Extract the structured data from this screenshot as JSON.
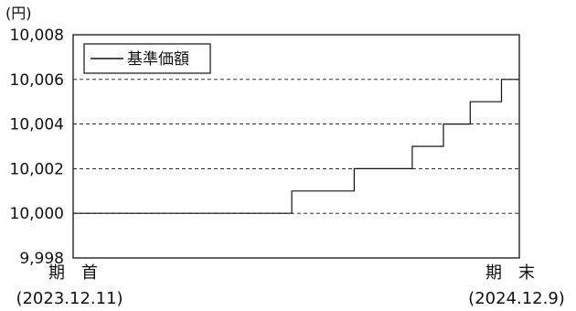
{
  "chart_data": {
    "type": "line",
    "unit": "(円)",
    "yticks": [
      "9,998",
      "10,000",
      "10,002",
      "10,004",
      "10,006",
      "10,008"
    ],
    "ylim": [
      9998,
      10008
    ],
    "grid": "dashed horizontal",
    "legend": {
      "position": "top-left",
      "label": "基準価額"
    },
    "x_start": {
      "label": "期　首",
      "date": "(2023.12.11)"
    },
    "x_end": {
      "label": "期　末",
      "date": "(2024.12.9)"
    },
    "series": [
      {
        "name": "基準価額",
        "points": [
          [
            0.0,
            10000
          ],
          [
            0.49,
            10000
          ],
          [
            0.49,
            10001
          ],
          [
            0.63,
            10001
          ],
          [
            0.63,
            10002
          ],
          [
            0.76,
            10002
          ],
          [
            0.76,
            10003
          ],
          [
            0.83,
            10003
          ],
          [
            0.83,
            10004
          ],
          [
            0.89,
            10004
          ],
          [
            0.89,
            10005
          ],
          [
            0.96,
            10005
          ],
          [
            0.96,
            10006
          ],
          [
            1.0,
            10006
          ]
        ]
      }
    ]
  }
}
